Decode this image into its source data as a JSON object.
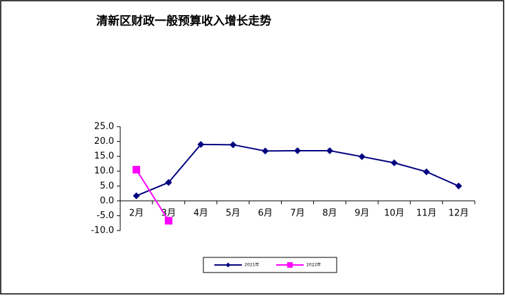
{
  "chart_data": {
    "type": "line",
    "title": "清新区财政一般预算收入增长走势",
    "categories": [
      "2月",
      "3月",
      "4月",
      "5月",
      "6月",
      "7月",
      "8月",
      "9月",
      "10月",
      "11月",
      "12月"
    ],
    "series": [
      {
        "name": "2021年",
        "color": "#000080",
        "marker": "diamond",
        "values": [
          1.7,
          6.2,
          19.0,
          18.9,
          16.8,
          16.9,
          16.9,
          14.9,
          12.8,
          9.8,
          5.0
        ]
      },
      {
        "name": "2022年",
        "color": "#ff00ff",
        "marker": "square",
        "values": [
          10.5,
          -6.7,
          null,
          null,
          null,
          null,
          null,
          null,
          null,
          null,
          null
        ]
      }
    ],
    "ylim": [
      -10,
      25
    ],
    "yticks": [
      {
        "value": -10,
        "label": "-10.0"
      },
      {
        "value": -5,
        "label": "-5.0"
      },
      {
        "value": 0,
        "label": "0.0"
      },
      {
        "value": 5,
        "label": "5.0"
      },
      {
        "value": 10,
        "label": "10.0"
      },
      {
        "value": 15,
        "label": "15.0"
      },
      {
        "value": 20,
        "label": "20.0"
      },
      {
        "value": 25,
        "label": "25.0"
      }
    ],
    "legend": "bottom",
    "grid": false
  }
}
